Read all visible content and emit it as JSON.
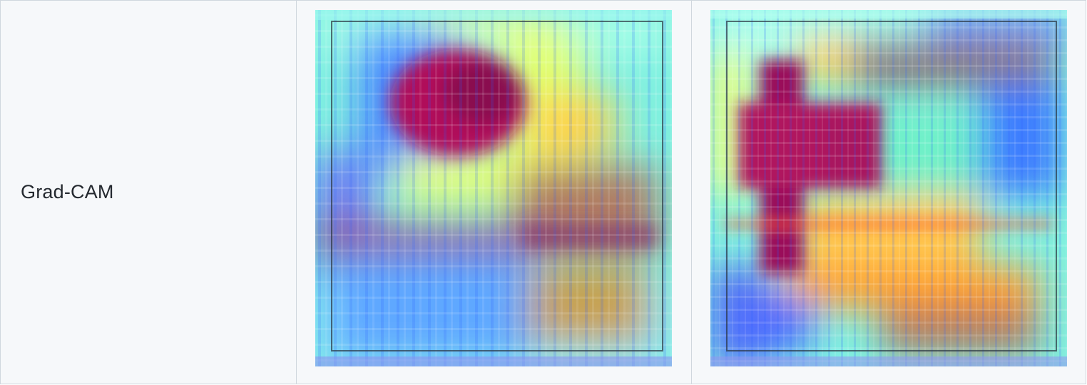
{
  "table": {
    "row_label": "Grad-CAM",
    "images": [
      {
        "name": "grad-cam-heatmap-1",
        "description_icon": "heatmap-image"
      },
      {
        "name": "grad-cam-heatmap-2",
        "description_icon": "heatmap-image"
      }
    ]
  }
}
